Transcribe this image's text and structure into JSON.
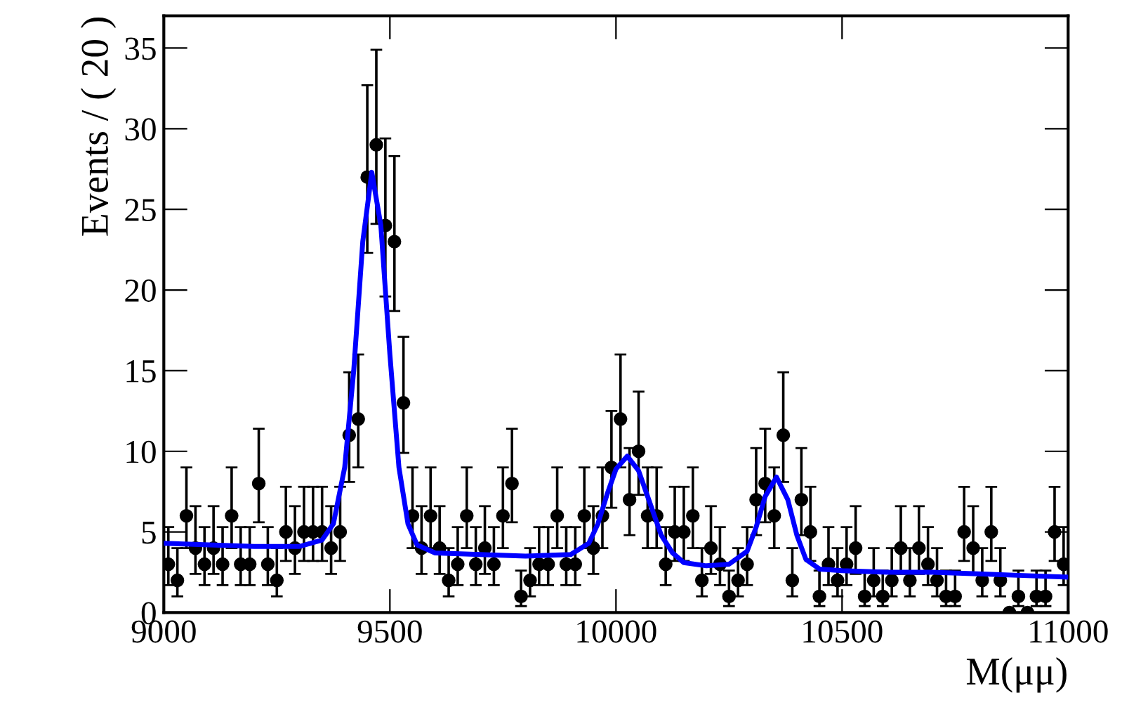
{
  "chart_data": {
    "type": "scatter",
    "xlabel": "M(μμ)",
    "ylabel": "Events / ( 20 )",
    "xlim": [
      9000,
      11000
    ],
    "ylim": [
      0,
      37
    ],
    "xticks": [
      9000,
      9500,
      10000,
      10500,
      11000
    ],
    "yticks": [
      0,
      5,
      10,
      15,
      20,
      25,
      30,
      35
    ],
    "grid": false,
    "legend": false,
    "series": [
      {
        "color": "#000000",
        "marker": "circle",
        "x": [
          9010,
          9030,
          9050,
          9070,
          9090,
          9110,
          9130,
          9150,
          9170,
          9190,
          9210,
          9230,
          9250,
          9270,
          9290,
          9310,
          9330,
          9350,
          9370,
          9390,
          9410,
          9430,
          9450,
          9470,
          9490,
          9510,
          9530,
          9550,
          9570,
          9590,
          9610,
          9630,
          9650,
          9670,
          9690,
          9710,
          9730,
          9750,
          9770,
          9790,
          9810,
          9830,
          9850,
          9870,
          9890,
          9910,
          9930,
          9950,
          9970,
          9990,
          10010,
          10030,
          10050,
          10070,
          10090,
          10110,
          10130,
          10150,
          10170,
          10190,
          10210,
          10230,
          10250,
          10270,
          10290,
          10310,
          10330,
          10350,
          10370,
          10390,
          10410,
          10430,
          10450,
          10470,
          10490,
          10510,
          10530,
          10550,
          10570,
          10590,
          10610,
          10630,
          10650,
          10670,
          10690,
          10710,
          10730,
          10750,
          10770,
          10790,
          10810,
          10830,
          10850,
          10870,
          10890,
          10910,
          10930,
          10950,
          10970,
          10990
        ],
        "values": [
          3,
          2,
          6,
          4,
          3,
          4,
          3,
          6,
          3,
          3,
          8,
          3,
          2,
          5,
          4,
          5,
          5,
          5,
          4,
          5,
          11,
          12,
          27,
          29,
          24,
          23,
          13,
          6,
          4,
          6,
          4,
          2,
          3,
          6,
          3,
          4,
          3,
          6,
          8,
          1,
          2,
          3,
          3,
          6,
          3,
          3,
          6,
          4,
          6,
          9,
          12,
          7,
          10,
          6,
          6,
          3,
          5,
          5,
          6,
          2,
          4,
          3,
          1,
          2,
          3,
          7,
          8,
          6,
          11,
          2,
          7,
          5,
          1,
          3,
          2,
          3,
          4,
          1,
          2,
          1,
          2,
          4,
          2,
          4,
          3,
          2,
          1,
          1,
          5,
          4,
          2,
          5,
          2,
          0,
          1,
          0,
          1,
          1,
          5,
          3
        ],
        "errors": [
          [
            1.7,
            5.3
          ],
          [
            1.0,
            4.0
          ],
          [
            4.0,
            9.0
          ],
          [
            2.4,
            6.6
          ],
          [
            1.7,
            5.3
          ],
          [
            2.4,
            6.6
          ],
          [
            1.7,
            5.3
          ],
          [
            4.0,
            9.0
          ],
          [
            1.7,
            5.3
          ],
          [
            1.7,
            5.3
          ],
          [
            5.6,
            11.4
          ],
          [
            1.7,
            5.3
          ],
          [
            1.0,
            4.0
          ],
          [
            3.2,
            7.8
          ],
          [
            2.4,
            6.6
          ],
          [
            3.2,
            7.8
          ],
          [
            3.2,
            7.8
          ],
          [
            3.2,
            7.8
          ],
          [
            2.4,
            6.6
          ],
          [
            3.2,
            7.8
          ],
          [
            8.1,
            14.9
          ],
          [
            9.0,
            16.0
          ],
          [
            22.3,
            32.7
          ],
          [
            24.1,
            34.9
          ],
          [
            19.6,
            29.4
          ],
          [
            18.7,
            28.3
          ],
          [
            9.9,
            17.1
          ],
          [
            4.0,
            9.0
          ],
          [
            2.4,
            6.6
          ],
          [
            4.0,
            9.0
          ],
          [
            2.4,
            6.6
          ],
          [
            1.0,
            4.0
          ],
          [
            1.7,
            5.3
          ],
          [
            4.0,
            9.0
          ],
          [
            1.7,
            5.3
          ],
          [
            2.4,
            6.6
          ],
          [
            1.7,
            5.3
          ],
          [
            4.0,
            9.0
          ],
          [
            5.6,
            11.4
          ],
          [
            0.4,
            2.6
          ],
          [
            1.0,
            4.0
          ],
          [
            1.7,
            5.3
          ],
          [
            1.7,
            5.3
          ],
          [
            4.0,
            9.0
          ],
          [
            1.7,
            5.3
          ],
          [
            1.7,
            5.3
          ],
          [
            4.0,
            9.0
          ],
          [
            2.4,
            6.6
          ],
          [
            4.0,
            9.0
          ],
          [
            6.5,
            12.5
          ],
          [
            9.0,
            16.0
          ],
          [
            4.8,
            10.2
          ],
          [
            7.3,
            13.7
          ],
          [
            4.0,
            9.0
          ],
          [
            4.0,
            9.0
          ],
          [
            1.7,
            5.3
          ],
          [
            3.2,
            7.8
          ],
          [
            3.2,
            7.8
          ],
          [
            4.0,
            9.0
          ],
          [
            1.0,
            4.0
          ],
          [
            2.4,
            6.6
          ],
          [
            1.7,
            5.3
          ],
          [
            0.4,
            2.6
          ],
          [
            1.0,
            4.0
          ],
          [
            1.7,
            5.3
          ],
          [
            4.8,
            10.2
          ],
          [
            5.6,
            11.4
          ],
          [
            4.0,
            9.0
          ],
          [
            8.1,
            14.9
          ],
          [
            1.0,
            4.0
          ],
          [
            4.8,
            10.2
          ],
          [
            3.2,
            7.8
          ],
          [
            0.4,
            2.6
          ],
          [
            1.7,
            5.3
          ],
          [
            1.0,
            4.0
          ],
          [
            1.7,
            5.3
          ],
          [
            2.4,
            6.6
          ],
          [
            0.4,
            2.6
          ],
          [
            1.0,
            4.0
          ],
          [
            0.4,
            2.6
          ],
          [
            1.0,
            4.0
          ],
          [
            2.4,
            6.6
          ],
          [
            1.0,
            4.0
          ],
          [
            2.4,
            6.6
          ],
          [
            1.7,
            5.3
          ],
          [
            1.0,
            4.0
          ],
          [
            0.4,
            2.6
          ],
          [
            0.4,
            2.6
          ],
          [
            3.2,
            7.8
          ],
          [
            2.4,
            6.6
          ],
          [
            1.0,
            4.0
          ],
          [
            3.2,
            7.8
          ],
          [
            1.0,
            4.0
          ],
          null,
          [
            0.4,
            2.6
          ],
          null,
          [
            0.4,
            2.6
          ],
          [
            0.4,
            2.6
          ],
          [
            3.2,
            7.8
          ],
          [
            1.7,
            5.3
          ]
        ]
      },
      {
        "type": "line",
        "color": "#0000ff",
        "line_style": "solid",
        "x": [
          9000,
          9100,
          9200,
          9300,
          9350,
          9375,
          9400,
          9420,
          9440,
          9460,
          9480,
          9500,
          9520,
          9540,
          9560,
          9600,
          9700,
          9800,
          9900,
          9940,
          9960,
          9980,
          10000,
          10025,
          10050,
          10075,
          10100,
          10125,
          10150,
          10200,
          10250,
          10290,
          10310,
          10330,
          10355,
          10380,
          10400,
          10420,
          10450,
          10500,
          10600,
          10700,
          10800,
          10900,
          11000
        ],
        "values": [
          4.3,
          4.2,
          4.1,
          4.1,
          4.5,
          5.5,
          9,
          15,
          23,
          27.3,
          24,
          16,
          9,
          5.5,
          4.2,
          3.7,
          3.6,
          3.5,
          3.6,
          4.3,
          5.5,
          7.3,
          8.9,
          9.7,
          8.8,
          6.8,
          4.8,
          3.7,
          3.1,
          2.9,
          3.0,
          3.8,
          5.3,
          7.2,
          8.4,
          7.0,
          4.8,
          3.3,
          2.7,
          2.6,
          2.5,
          2.5,
          2.4,
          2.3,
          2.2
        ]
      }
    ]
  }
}
